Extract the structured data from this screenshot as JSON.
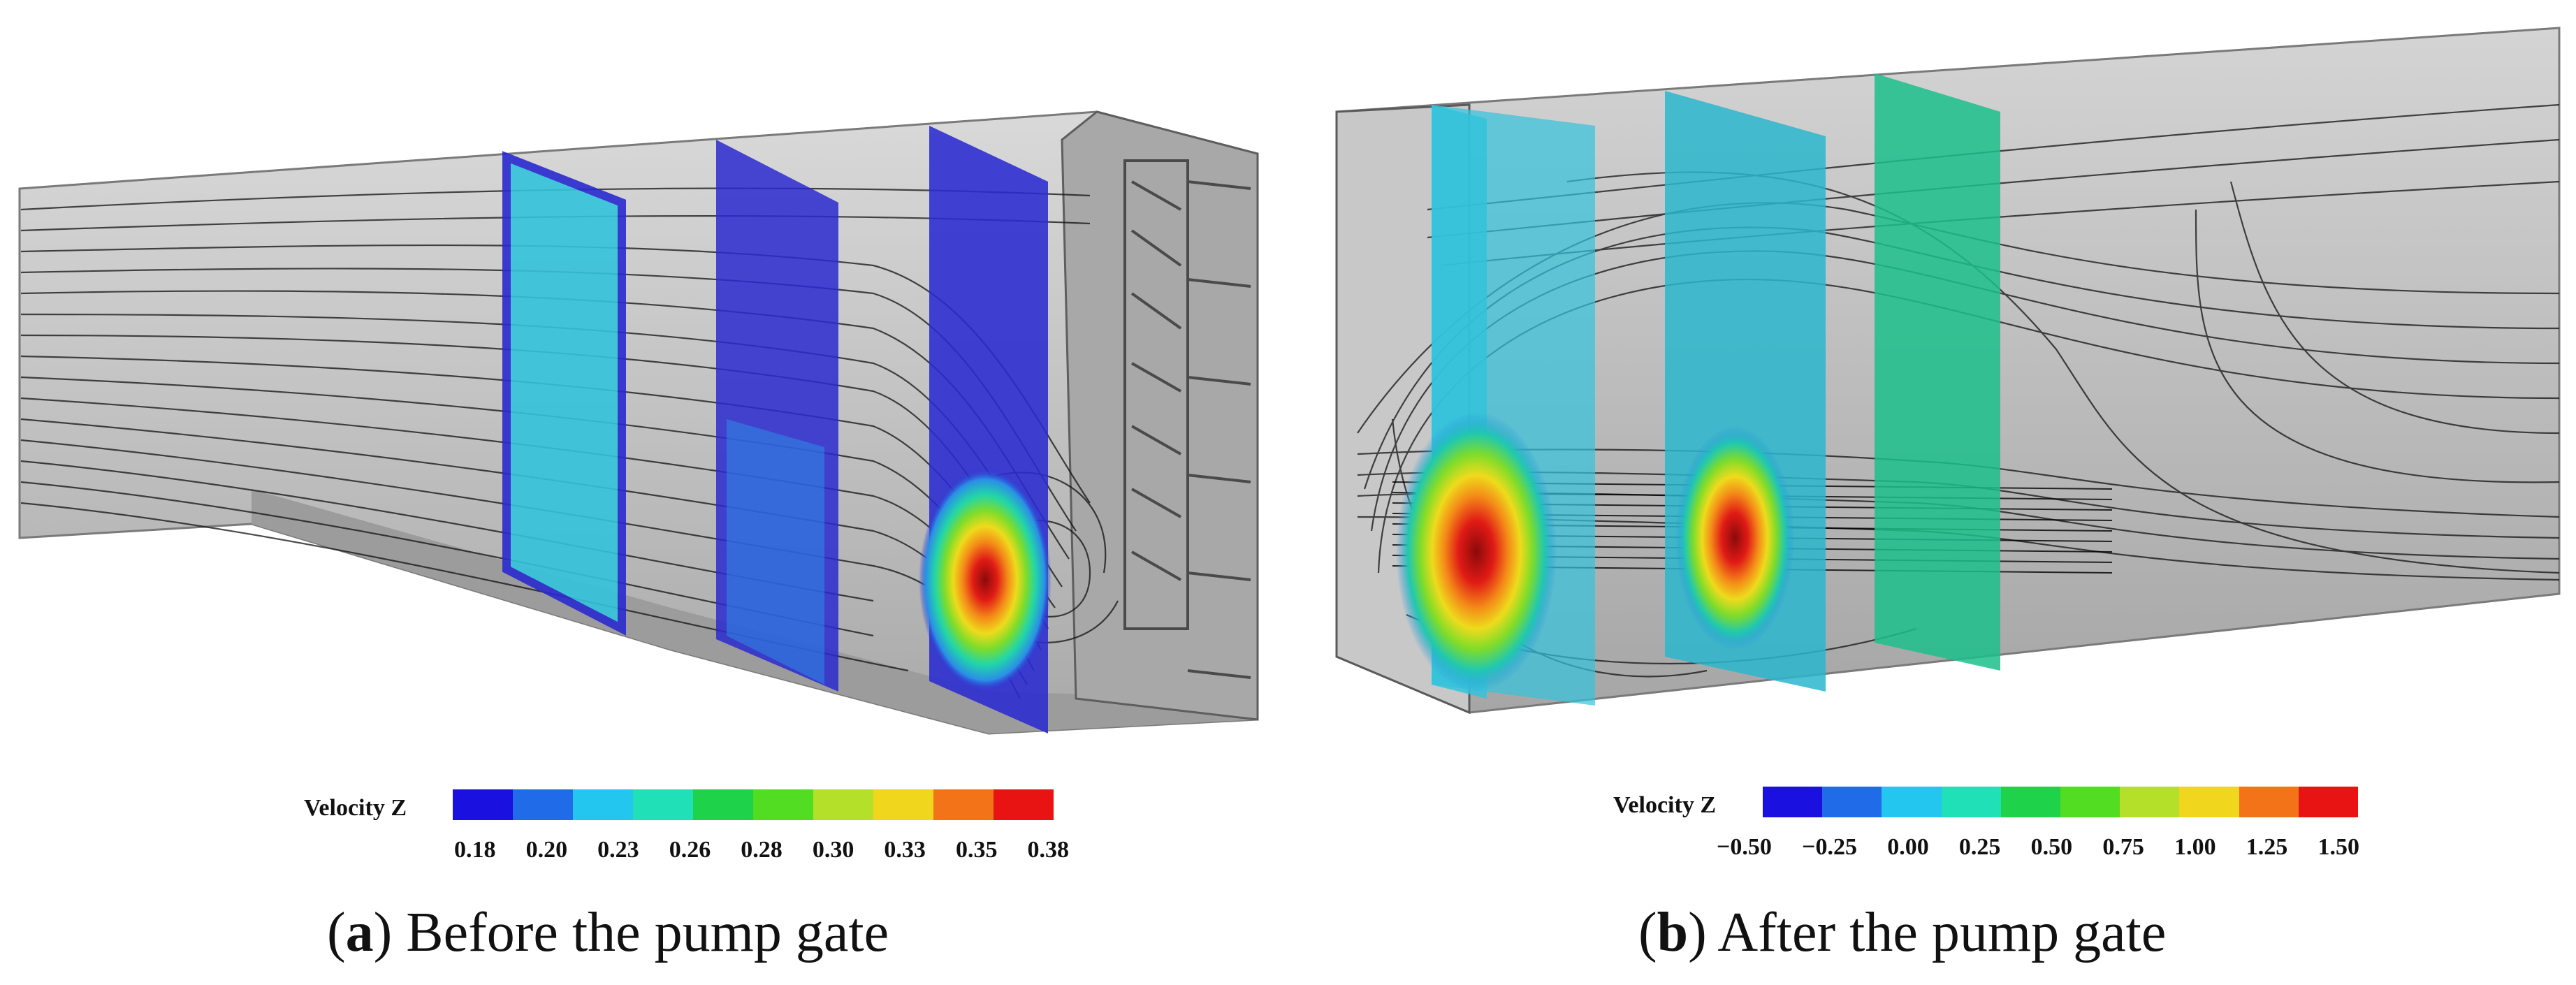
{
  "panels": [
    {
      "id": "a",
      "legend": {
        "title": "Velocity Z",
        "colors": [
          "#1a10e0",
          "#1f6be8",
          "#22c6ee",
          "#20e0b8",
          "#1ed24a",
          "#52dc22",
          "#b4e02a",
          "#f0d61c",
          "#f37418",
          "#e81414"
        ],
        "ticks": [
          "0.18",
          "0.20",
          "0.23",
          "0.26",
          "0.28",
          "0.30",
          "0.33",
          "0.35",
          "0.38"
        ]
      },
      "caption": {
        "letter": "a",
        "text": "Before the pump gate"
      }
    },
    {
      "id": "b",
      "legend": {
        "title": "Velocity Z",
        "colors": [
          "#1a10e0",
          "#1f6be8",
          "#22c6ee",
          "#20e0b8",
          "#1ed24a",
          "#52dc22",
          "#b4e02a",
          "#f0d61c",
          "#f37418",
          "#e81414"
        ],
        "ticks": [
          "−0.50",
          "−0.25",
          "0.00",
          "0.25",
          "0.50",
          "0.75",
          "1.00",
          "1.25",
          "1.50"
        ]
      },
      "caption": {
        "letter": "b",
        "text": "After the pump gate"
      }
    }
  ],
  "colors": {
    "channel": "#b8b8b8",
    "stream": "#111111",
    "panel_cyan": "#33c3dc",
    "panel_blue": "#2a2ad0",
    "panel_green": "#1cbf8c"
  }
}
